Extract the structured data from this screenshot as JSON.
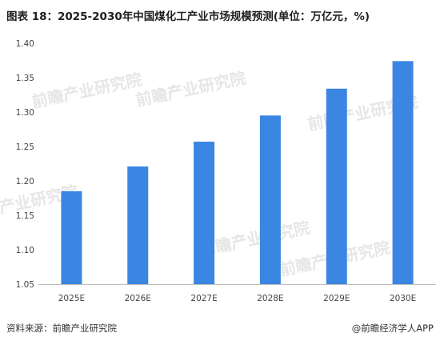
{
  "title": "图表 18：2025-2030年中国煤化工产业市场规模预测(单位：万亿元，%)",
  "source": "资料来源：前瞻产业研究院",
  "brand": "@前瞻经济学人APP",
  "watermark": "前瞻产业研究院",
  "colors": {
    "bar": "#3a86e2",
    "axis": "#bfbfbf",
    "watermark": "#e6e6e6"
  },
  "chart_data": {
    "type": "bar",
    "categories": [
      "2025E",
      "2026E",
      "2027E",
      "2028E",
      "2029E",
      "2030E"
    ],
    "values": [
      1.185,
      1.221,
      1.257,
      1.295,
      1.334,
      1.374
    ],
    "ylim": [
      1.05,
      1.4
    ],
    "yticks": [
      "1.05",
      "1.10",
      "1.15",
      "1.20",
      "1.25",
      "1.30",
      "1.35",
      "1.40"
    ],
    "grid": false
  }
}
